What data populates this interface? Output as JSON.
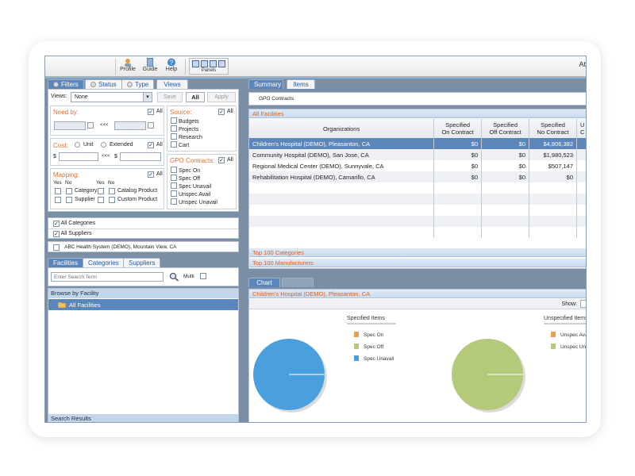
{
  "toolbar": {
    "profile": "Profile",
    "guide": "Guide",
    "help": "Help",
    "panels": "Panels",
    "right_text": "At"
  },
  "left_tabs": {
    "filters": "Filters",
    "status": "Status",
    "type": "Type",
    "views": "Views"
  },
  "views_row": {
    "label": "Views:",
    "selected": "None",
    "save": "Save",
    "all": "All",
    "apply": "Apply"
  },
  "need_by": {
    "label": "Need by:",
    "all": "All",
    "sep": "<<<"
  },
  "source": {
    "label": "Source:",
    "all": "All",
    "items": [
      "Budgets",
      "Projects",
      "Research",
      "Cart"
    ]
  },
  "cost": {
    "label": "Cost:",
    "unit": "Unit",
    "extended": "Extended",
    "all": "All",
    "currency": "$",
    "sep": "<<<"
  },
  "gpo": {
    "label": "GPO Contracts:",
    "all": "All",
    "items": [
      "Spec On",
      "Spec Off",
      "Spec Unavail",
      "Unspec Avail",
      "Unspec Unavail"
    ]
  },
  "mapping": {
    "label": "Mapping:",
    "all": "All",
    "yes": "Yes",
    "no": "No",
    "category": "Category",
    "supplier": "Supplier",
    "catalog_product": "Catalog Product",
    "custom_product": "Custom Product"
  },
  "all_lists": {
    "categories": "All Categories",
    "suppliers": "All Suppliers"
  },
  "system": "ABC Health System (DEMO), Mountain View, CA",
  "browse_tabs": {
    "facilities": "Facilities",
    "categories": "Categories",
    "suppliers": "Suppliers"
  },
  "search": {
    "placeholder": "Enter Search Term",
    "multi": "Multi"
  },
  "browse": {
    "header": "Browse by Facility",
    "root": "All Facilities",
    "results": "Search Results"
  },
  "right_tabs": {
    "summary": "Summary",
    "items": "Items"
  },
  "gpo_subtab": "GPO Contracts",
  "all_facilities_header": "All Facilities",
  "table": {
    "columns": [
      "Organizations",
      "Specified On Contract",
      "Specified Off Contract",
      "Specified No Contract",
      "U C"
    ],
    "col_line1": [
      "Organizations",
      "Specified",
      "Specified",
      "Specified",
      "U"
    ],
    "col_line2": [
      "",
      "On Contract",
      "Off Contract",
      "No Contract",
      "C"
    ],
    "rows": [
      {
        "org": "Children's Hospital (DEMO), Pleasanton, CA",
        "on": "$0",
        "off": "$0",
        "no": "$4,806,382"
      },
      {
        "org": "Community Hospital (DEMO), San Jose, CA",
        "on": "$0",
        "off": "$0",
        "no": "$1,980,523"
      },
      {
        "org": "Regional Medical Center (DEMO), Sunnyvale, CA",
        "on": "$0",
        "off": "$0",
        "no": "$507,147"
      },
      {
        "org": "Rehabilitation Hospital (DEMO), Camarillo, CA",
        "on": "$0",
        "off": "$0",
        "no": "$0"
      }
    ]
  },
  "top_categories": "Top 100 Categories",
  "top_manufacturers": "Top 100 Manufacturers",
  "chart_tabs": {
    "chart": "Chart"
  },
  "chart_facility": "Children's Hospital (DEMO), Pleasanton, CA",
  "show_label": "Show:",
  "colors": {
    "spec_on": "#e8a050",
    "spec_off": "#b5c97a",
    "spec_unavail": "#4a9fdc",
    "unspec_avail": "#e8a050",
    "unspec_unavail": "#b5c97a"
  },
  "chart_data": [
    {
      "type": "pie",
      "title": "Specified Items",
      "labels": [
        "Spec On",
        "Spec Off",
        "Spec Unavail"
      ],
      "values": [
        0,
        0,
        100
      ]
    },
    {
      "type": "pie",
      "title": "Unspecified Items",
      "labels": [
        "Unspec Avail",
        "Unspec Unavail"
      ],
      "values": [
        0,
        100
      ]
    }
  ]
}
